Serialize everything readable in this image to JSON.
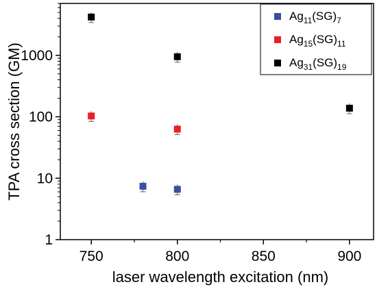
{
  "chart_data": {
    "type": "scatter",
    "title": "",
    "xlabel": "laser wavelength excitation (nm)",
    "ylabel": "TPA cross section (GM)",
    "xlim": [
      732,
      914
    ],
    "ylim": [
      1,
      7000
    ],
    "yscale": "log",
    "grid": false,
    "legend_position": "top-right",
    "xticks": [
      750,
      800,
      850,
      900
    ],
    "yticks": [
      1,
      10,
      100,
      1000
    ],
    "series": [
      {
        "legend": {
          "base": "Ag",
          "n": "11",
          "mid": "(SG)",
          "m": "7"
        },
        "color": "#3a4fa0",
        "points": [
          {
            "x": 780,
            "y": 7.4
          },
          {
            "x": 800,
            "y": 6.6
          }
        ]
      },
      {
        "legend": {
          "base": "Ag",
          "n": "15",
          "mid": "(SG)",
          "m": "11"
        },
        "color": "#e8202a",
        "points": [
          {
            "x": 750,
            "y": 103
          },
          {
            "x": 800,
            "y": 63
          }
        ]
      },
      {
        "legend": {
          "base": "Ag",
          "n": "31",
          "mid": "(SG)",
          "m": "19"
        },
        "color": "#000000",
        "points": [
          {
            "x": 750,
            "y": 4200
          },
          {
            "x": 800,
            "y": 950
          },
          {
            "x": 900,
            "y": 138
          }
        ]
      }
    ]
  }
}
